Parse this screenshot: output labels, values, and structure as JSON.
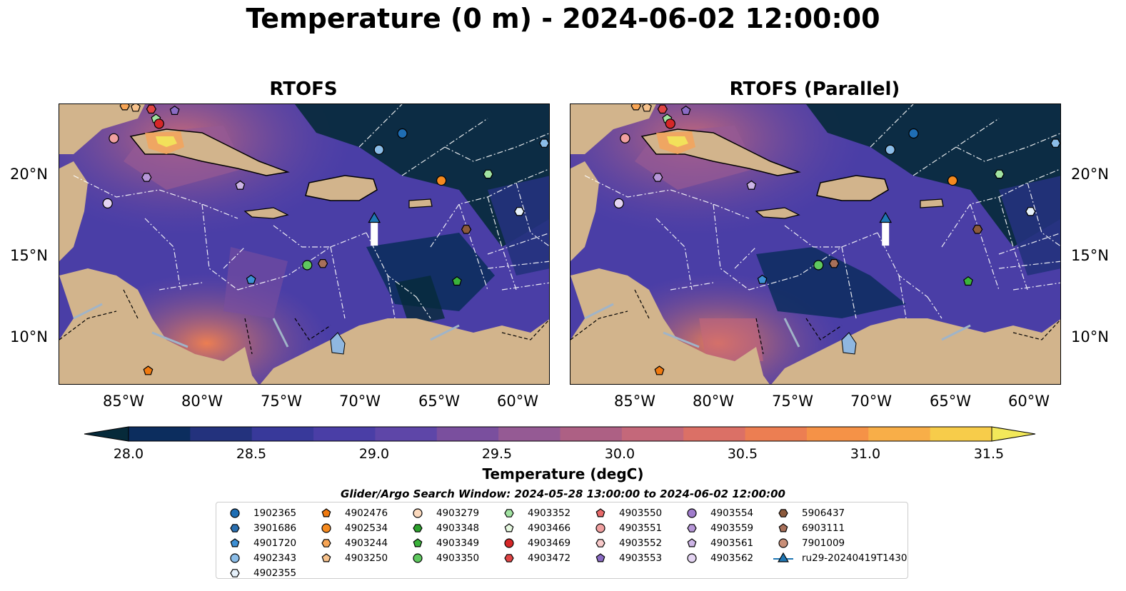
{
  "title": "Temperature (0 m) - 2024-06-02 12:00:00",
  "panels": [
    {
      "title": "RTOFS"
    },
    {
      "title": "RTOFS (Parallel)"
    }
  ],
  "lat_labels": [
    "20°N",
    "15°N",
    "10°N"
  ],
  "lon_labels": [
    "85°W",
    "80°W",
    "75°W",
    "70°W",
    "65°W",
    "60°W"
  ],
  "colorbar": {
    "label": "Temperature (degC)",
    "ticks": [
      "28.0",
      "28.5",
      "29.0",
      "29.5",
      "30.0",
      "30.5",
      "31.0",
      "31.5"
    ],
    "min": 28.0,
    "max": 31.5,
    "step": 0.25,
    "extend": "both",
    "colors": [
      "#062a3a",
      "#0c2d5e",
      "#23327d",
      "#38399a",
      "#4a3ea6",
      "#5e46a8",
      "#7a4f9e",
      "#955a94",
      "#ad6084",
      "#c4687a",
      "#db7066",
      "#ec7e52",
      "#f59247",
      "#f8ae48",
      "#f7cc4a",
      "#f2e85a"
    ]
  },
  "search_window": "Glider/Argo Search Window: 2024-05-28 13:00:00 to 2024-06-02 12:00:00",
  "legend": [
    {
      "label": "1902365",
      "marker": "circle",
      "color": "#1f6eb4"
    },
    {
      "label": "3901686",
      "marker": "hexagon",
      "color": "#2a6fb0"
    },
    {
      "label": "4901720",
      "marker": "pentagon",
      "color": "#3d8fd4"
    },
    {
      "label": "4902343",
      "marker": "circle",
      "color": "#8bbde8"
    },
    {
      "label": "4902355",
      "marker": "hexagon",
      "color": "#e6f1fb"
    },
    {
      "label": "4902476",
      "marker": "pentagon",
      "color": "#f07a10"
    },
    {
      "label": "4902534",
      "marker": "circle",
      "color": "#f58a1f"
    },
    {
      "label": "4903244",
      "marker": "hexagon",
      "color": "#f7a555"
    },
    {
      "label": "4903250",
      "marker": "pentagon",
      "color": "#f7c28c"
    },
    {
      "label": "4903279",
      "marker": "circle",
      "color": "#fbd9bd"
    },
    {
      "label": "4903348",
      "marker": "hexagon",
      "color": "#2ca02c"
    },
    {
      "label": "4903349",
      "marker": "pentagon",
      "color": "#3bb33b"
    },
    {
      "label": "4903350",
      "marker": "circle",
      "color": "#5fc85f"
    },
    {
      "label": "4903352",
      "marker": "hexagon",
      "color": "#a2e3a2"
    },
    {
      "label": "4903466",
      "marker": "pentagon",
      "color": "#e6f8e0"
    },
    {
      "label": "4903469",
      "marker": "circle",
      "color": "#d62728"
    },
    {
      "label": "4903472",
      "marker": "hexagon",
      "color": "#e04545"
    },
    {
      "label": "4903550",
      "marker": "pentagon",
      "color": "#e86a6a"
    },
    {
      "label": "4903551",
      "marker": "circle",
      "color": "#f0a0a0"
    },
    {
      "label": "4903552",
      "marker": "hexagon",
      "color": "#f8caca"
    },
    {
      "label": "4903553",
      "marker": "pentagon",
      "color": "#8a6bc4"
    },
    {
      "label": "4903554",
      "marker": "circle",
      "color": "#a07ccc"
    },
    {
      "label": "4903559",
      "marker": "hexagon",
      "color": "#b797d8"
    },
    {
      "label": "4903561",
      "marker": "pentagon",
      "color": "#cdb5e6"
    },
    {
      "label": "4903562",
      "marker": "circle",
      "color": "#e4d4f2"
    },
    {
      "label": "5906437",
      "marker": "hexagon",
      "color": "#8c5a3c"
    },
    {
      "label": "6903111",
      "marker": "pentagon",
      "color": "#a8705a"
    },
    {
      "label": "7901009",
      "marker": "circle",
      "color": "#c98f78"
    },
    {
      "label": "ru29-20240419T1430",
      "marker": "triangle-line",
      "color": "#1f77b4"
    }
  ],
  "map_extent": {
    "lon_min": -89.5,
    "lon_max": -58.0,
    "lat_min": 7.0,
    "lat_max": 24.3
  },
  "floats": [
    {
      "lon": -67.5,
      "lat": 22.5,
      "marker": "circle",
      "color": "#1f6eb4"
    },
    {
      "lon": -77.2,
      "lat": 13.5,
      "marker": "pentagon",
      "color": "#3d8fd4"
    },
    {
      "lon": -69.0,
      "lat": 21.5,
      "marker": "circle",
      "color": "#8bbde8"
    },
    {
      "lon": -58.4,
      "lat": 21.9,
      "marker": "hexagon",
      "color": "#8bbde8"
    },
    {
      "lon": -60.0,
      "lat": 17.7,
      "marker": "hexagon",
      "color": "#e6f1fb"
    },
    {
      "lon": -83.8,
      "lat": 7.9,
      "marker": "pentagon",
      "color": "#f07a10"
    },
    {
      "lon": -65.0,
      "lat": 19.6,
      "marker": "circle",
      "color": "#f58a1f"
    },
    {
      "lon": -85.3,
      "lat": 24.2,
      "marker": "hexagon",
      "color": "#f7a555"
    },
    {
      "lon": -84.6,
      "lat": 24.1,
      "marker": "pentagon",
      "color": "#f7c28c"
    },
    {
      "lon": -72.6,
      "lat": 14.5,
      "marker": "hexagon",
      "color": "#a8705a"
    },
    {
      "lon": -64.0,
      "lat": 13.4,
      "marker": "pentagon",
      "color": "#3bb33b"
    },
    {
      "lon": -73.6,
      "lat": 14.4,
      "marker": "circle",
      "color": "#5fc85f"
    },
    {
      "lon": -62.0,
      "lat": 20.0,
      "marker": "hexagon",
      "color": "#a2e3a2"
    },
    {
      "lon": -83.3,
      "lat": 23.4,
      "marker": "pentagon",
      "color": "#a2e3a2"
    },
    {
      "lon": -83.1,
      "lat": 23.1,
      "marker": "circle",
      "color": "#d62728"
    },
    {
      "lon": -83.6,
      "lat": 24.0,
      "marker": "hexagon",
      "color": "#e04545"
    },
    {
      "lon": -86.0,
      "lat": 22.2,
      "marker": "circle",
      "color": "#f0a0a0"
    },
    {
      "lon": -82.1,
      "lat": 23.9,
      "marker": "pentagon",
      "color": "#8a6bc4"
    },
    {
      "lon": -83.9,
      "lat": 19.8,
      "marker": "hexagon",
      "color": "#b797d8"
    },
    {
      "lon": -77.9,
      "lat": 19.3,
      "marker": "pentagon",
      "color": "#cdb5e6"
    },
    {
      "lon": -86.4,
      "lat": 18.2,
      "marker": "circle",
      "color": "#e4d4f2"
    },
    {
      "lon": -63.4,
      "lat": 16.6,
      "marker": "hexagon",
      "color": "#8c5a3c"
    }
  ],
  "glider": {
    "lon": -69.3,
    "lat": 17.1,
    "track_lat_end": 15.6
  }
}
